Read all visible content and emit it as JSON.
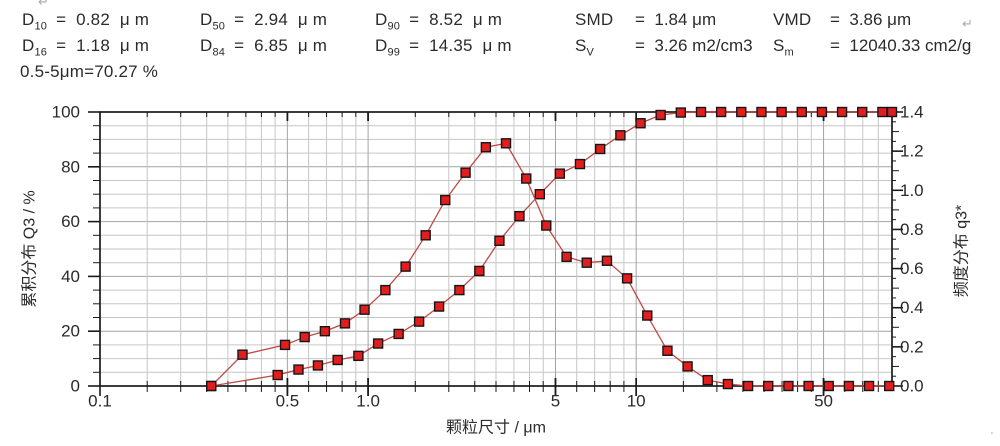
{
  "page": {
    "background": "#ffffff",
    "return_mark": "↵",
    "corner_mark": "'"
  },
  "header": {
    "d_stats": [
      {
        "name": "D",
        "sub": "10",
        "value": "=  0.82  μ m"
      },
      {
        "name": "D",
        "sub": "50",
        "value": "=  2.94  μ m"
      },
      {
        "name": "D",
        "sub": "90",
        "value": "=  8.52  μ m"
      },
      {
        "name": "D",
        "sub": "16",
        "value": "=  1.18  μ m"
      },
      {
        "name": "D",
        "sub": "84",
        "value": "=  6.85  μ m"
      },
      {
        "name": "D",
        "sub": "99",
        "value": "=  14.35  μ m"
      }
    ],
    "s_stats": [
      {
        "name": "SMD",
        "sub": "",
        "value": "=  1.84 μm"
      },
      {
        "name": "VMD",
        "sub": "",
        "value": "=  3.86 μm"
      },
      {
        "name": "S",
        "sub": "V",
        "value": "=  3.26 m2/cm3"
      },
      {
        "name": "S",
        "sub": "m",
        "value": "=  12040.33 cm2/g"
      }
    ],
    "range_stat": "0.5-5μm=70.27 %"
  },
  "chart_data": {
    "type": "line",
    "title": "",
    "x_axis": {
      "label": "颗粒尺寸 / μm",
      "scale": "log",
      "min": 0.1,
      "max": 90,
      "major_ticks": [
        0.1,
        0.5,
        1.0,
        5,
        10,
        50
      ],
      "tick_labels": [
        "0.1",
        "0.5",
        "1.0",
        "5",
        "10",
        "50"
      ]
    },
    "y_left": {
      "label": "累积分布 Q3 / %",
      "min": 0,
      "max": 100,
      "minor_step": 5,
      "tick_values": [
        0,
        20,
        40,
        60,
        80,
        100
      ],
      "tick_labels": [
        "0",
        "20",
        "40",
        "60",
        "80",
        "100"
      ]
    },
    "y_right": {
      "label": "频度分布 q3*",
      "min": 0,
      "max": 1.4,
      "minor_step": 0.05,
      "tick_values": [
        0.0,
        0.2,
        0.4,
        0.6,
        0.8,
        1.0,
        1.2,
        1.4
      ],
      "tick_labels": [
        "0.0",
        "0.2",
        "0.4",
        "0.6",
        "0.8",
        "1.0",
        "1.2",
        "1.4"
      ]
    },
    "grid": true,
    "legend": "none",
    "style": {
      "line_color": "#bf4a45",
      "marker_fill": "#e21d1d",
      "marker_stroke": "#161616",
      "grid_minor": "#c6c6c6",
      "grid_major": "#a3a3a3",
      "axis_color": "#1a1a1a",
      "text_color": "#2b2b2b"
    },
    "series": [
      {
        "name": "cumulative-Q3",
        "axis": "left",
        "x": [
          0.26,
          0.46,
          0.55,
          0.65,
          0.77,
          0.92,
          1.09,
          1.3,
          1.55,
          1.84,
          2.19,
          2.6,
          3.09,
          3.67,
          4.37,
          5.19,
          6.17,
          7.34,
          8.73,
          10.38,
          12.34,
          14.67,
          17.45,
          20.74,
          24.66,
          29.33,
          34.87,
          41.46,
          49.3,
          58.62,
          69.7,
          82.88,
          90.0
        ],
        "y": [
          0,
          4,
          6,
          7.5,
          9.5,
          11,
          15.5,
          19,
          23.5,
          29,
          35,
          42,
          53,
          62,
          70,
          77.5,
          81,
          86.5,
          91.5,
          95.9,
          98.9,
          99.8,
          100,
          100,
          100,
          100,
          100,
          100,
          100,
          100,
          100,
          100,
          100
        ]
      },
      {
        "name": "frequency-q3star",
        "axis": "right",
        "x": [
          0.26,
          0.34,
          0.49,
          0.58,
          0.69,
          0.82,
          0.97,
          1.16,
          1.38,
          1.64,
          1.94,
          2.31,
          2.75,
          3.27,
          3.89,
          4.62,
          5.5,
          6.54,
          7.78,
          9.25,
          11.0,
          13.08,
          15.55,
          18.49,
          21.99,
          26.15,
          31.09,
          36.97,
          43.96,
          52.27,
          62.15,
          73.9,
          87.87
        ],
        "y": [
          0,
          0.16,
          0.21,
          0.25,
          0.28,
          0.32,
          0.39,
          0.49,
          0.61,
          0.77,
          0.95,
          1.09,
          1.22,
          1.24,
          1.06,
          0.82,
          0.66,
          0.63,
          0.64,
          0.55,
          0.36,
          0.18,
          0.1,
          0.03,
          0.01,
          0,
          0,
          0,
          0,
          0,
          0,
          0,
          0
        ]
      }
    ]
  }
}
